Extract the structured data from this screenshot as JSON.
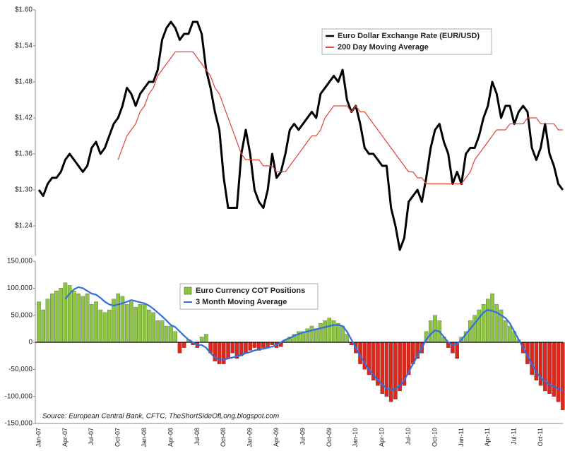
{
  "chart_data": [
    {
      "type": "line",
      "ylim": [
        1.19,
        1.6
      ],
      "yticks": [
        {
          "value": 1.24,
          "label": "$1.24"
        },
        {
          "value": 1.3,
          "label": "$1.30"
        },
        {
          "value": 1.36,
          "label": "$1.36"
        },
        {
          "value": 1.42,
          "label": "$1.42"
        },
        {
          "value": 1.48,
          "label": "$1.48"
        },
        {
          "value": 1.54,
          "label": "$1.54"
        },
        {
          "value": 1.6,
          "label": "$1.60"
        }
      ],
      "series": [
        {
          "name": "Euro Dollar Exchange Rate (EUR/USD)",
          "color": "#000000",
          "width": 3,
          "values": [
            1.3,
            1.29,
            1.31,
            1.32,
            1.32,
            1.33,
            1.35,
            1.36,
            1.35,
            1.34,
            1.33,
            1.34,
            1.37,
            1.38,
            1.36,
            1.37,
            1.39,
            1.41,
            1.42,
            1.44,
            1.47,
            1.46,
            1.44,
            1.46,
            1.47,
            1.48,
            1.48,
            1.5,
            1.55,
            1.57,
            1.58,
            1.57,
            1.55,
            1.56,
            1.56,
            1.58,
            1.58,
            1.56,
            1.5,
            1.47,
            1.43,
            1.4,
            1.32,
            1.27,
            1.27,
            1.27,
            1.36,
            1.4,
            1.36,
            1.3,
            1.28,
            1.27,
            1.3,
            1.36,
            1.32,
            1.33,
            1.36,
            1.4,
            1.41,
            1.4,
            1.41,
            1.42,
            1.43,
            1.42,
            1.46,
            1.47,
            1.48,
            1.49,
            1.48,
            1.5,
            1.45,
            1.43,
            1.44,
            1.41,
            1.37,
            1.36,
            1.36,
            1.35,
            1.34,
            1.34,
            1.27,
            1.24,
            1.2,
            1.22,
            1.28,
            1.29,
            1.3,
            1.28,
            1.32,
            1.37,
            1.4,
            1.41,
            1.38,
            1.36,
            1.31,
            1.33,
            1.31,
            1.36,
            1.37,
            1.37,
            1.39,
            1.42,
            1.44,
            1.48,
            1.46,
            1.42,
            1.44,
            1.44,
            1.41,
            1.43,
            1.44,
            1.43,
            1.37,
            1.35,
            1.37,
            1.41,
            1.36,
            1.34,
            1.31,
            1.3
          ]
        },
        {
          "name": "200 Day Moving Average",
          "color": "#e0453a",
          "width": 1.2,
          "values": [
            null,
            null,
            null,
            null,
            null,
            null,
            null,
            null,
            null,
            null,
            null,
            null,
            null,
            null,
            null,
            null,
            null,
            null,
            1.35,
            1.37,
            1.39,
            1.4,
            1.41,
            1.43,
            1.44,
            1.46,
            1.47,
            1.49,
            1.5,
            1.51,
            1.52,
            1.53,
            1.53,
            1.53,
            1.53,
            1.53,
            1.52,
            1.51,
            1.5,
            1.49,
            1.47,
            1.46,
            1.44,
            1.42,
            1.4,
            1.38,
            1.36,
            1.35,
            1.35,
            1.35,
            1.35,
            1.34,
            1.34,
            1.34,
            1.33,
            1.33,
            1.33,
            1.34,
            1.35,
            1.36,
            1.37,
            1.38,
            1.39,
            1.39,
            1.4,
            1.42,
            1.43,
            1.44,
            1.44,
            1.44,
            1.44,
            1.43,
            1.44,
            1.43,
            1.43,
            1.42,
            1.41,
            1.4,
            1.39,
            1.38,
            1.37,
            1.36,
            1.35,
            1.34,
            1.33,
            1.33,
            1.32,
            1.32,
            1.31,
            1.31,
            1.31,
            1.31,
            1.31,
            1.31,
            1.31,
            1.31,
            1.31,
            1.32,
            1.33,
            1.35,
            1.36,
            1.37,
            1.38,
            1.39,
            1.4,
            1.4,
            1.4,
            1.41,
            1.41,
            1.41,
            1.41,
            1.42,
            1.42,
            1.42,
            1.41,
            1.41,
            1.41,
            1.41,
            1.4,
            1.4
          ]
        }
      ]
    },
    {
      "type": "bar",
      "ylim": [
        -150000,
        150000
      ],
      "yticks": [
        {
          "value": -150000,
          "label": "-150,000"
        },
        {
          "value": -100000,
          "label": "-100,000"
        },
        {
          "value": -50000,
          "label": "-50,000"
        },
        0,
        {
          "value": 50000,
          "label": "50,000"
        },
        {
          "value": 100000,
          "label": "100,000"
        },
        {
          "value": 150000,
          "label": "150,000"
        }
      ],
      "categories": [
        "Jan-07",
        null,
        null,
        null,
        null,
        null,
        "Apr-07",
        null,
        null,
        null,
        null,
        null,
        "Jul-07",
        null,
        null,
        null,
        null,
        null,
        "Oct-07",
        null,
        null,
        null,
        null,
        null,
        "Jan-08",
        null,
        null,
        null,
        null,
        null,
        "Apr-08",
        null,
        null,
        null,
        null,
        null,
        "Jul-08",
        null,
        null,
        null,
        null,
        null,
        "Oct-08",
        null,
        null,
        null,
        null,
        null,
        "Jan-09",
        null,
        null,
        null,
        null,
        null,
        "Apr-09",
        null,
        null,
        null,
        null,
        null,
        "Jul-09",
        null,
        null,
        null,
        null,
        null,
        "Oct-09",
        null,
        null,
        null,
        null,
        null,
        "Jan-10",
        null,
        null,
        null,
        null,
        null,
        "Apr-10",
        null,
        null,
        null,
        null,
        null,
        "Jul-10",
        null,
        null,
        null,
        null,
        null,
        "Oct-10",
        null,
        null,
        null,
        null,
        null,
        "Jan-11",
        null,
        null,
        null,
        null,
        null,
        "Apr-11",
        null,
        null,
        null,
        null,
        null,
        "Jul-11",
        null,
        null,
        null,
        null,
        null,
        "Oct-11",
        null,
        null,
        null,
        null,
        null
      ],
      "annotation": "Source: European Central Bank, CFTC, TheShortSideOfLong.blogspot.com",
      "series": [
        {
          "name": "Euro Currency COT Positions",
          "kind": "bar",
          "color": "#8cc63f",
          "negative_color": "#e0261b",
          "values": [
            75000,
            60000,
            80000,
            90000,
            95000,
            100000,
            110000,
            105000,
            95000,
            90000,
            85000,
            90000,
            70000,
            75000,
            60000,
            55000,
            60000,
            80000,
            90000,
            85000,
            70000,
            75000,
            65000,
            70000,
            70000,
            60000,
            55000,
            40000,
            40000,
            30000,
            30000,
            20000,
            -20000,
            -10000,
            5000,
            -5000,
            -10000,
            10000,
            15000,
            -20000,
            -35000,
            -40000,
            -40000,
            -30000,
            -20000,
            -30000,
            -25000,
            -20000,
            -15000,
            -10000,
            -15000,
            -10000,
            -10000,
            -5000,
            -10000,
            -8000,
            5000,
            10000,
            15000,
            20000,
            20000,
            25000,
            30000,
            25000,
            35000,
            40000,
            45000,
            40000,
            35000,
            30000,
            15000,
            -5000,
            -20000,
            -40000,
            -50000,
            -60000,
            -70000,
            -80000,
            -95000,
            -100000,
            -110000,
            -105000,
            -90000,
            -80000,
            -60000,
            -40000,
            -30000,
            -20000,
            20000,
            40000,
            50000,
            40000,
            10000,
            -10000,
            -20000,
            -30000,
            10000,
            20000,
            40000,
            50000,
            60000,
            70000,
            80000,
            90000,
            70000,
            60000,
            40000,
            30000,
            20000,
            5000,
            -20000,
            -40000,
            -60000,
            -70000,
            -80000,
            -90000,
            -95000,
            -100000,
            -110000,
            -125000
          ]
        },
        {
          "name": "3 Month Moving Average",
          "kind": "line",
          "color": "#2f6fe0",
          "values": [
            null,
            null,
            null,
            null,
            null,
            null,
            80000,
            90000,
            98000,
            102000,
            100000,
            95000,
            90000,
            88000,
            82000,
            75000,
            70000,
            68000,
            70000,
            72000,
            75000,
            78000,
            76000,
            74000,
            72000,
            68000,
            62000,
            55000,
            48000,
            40000,
            32000,
            28000,
            20000,
            12000,
            5000,
            0,
            -5000,
            -5000,
            -10000,
            -20000,
            -28000,
            -32000,
            -32000,
            -30000,
            -28000,
            -26000,
            -24000,
            -20000,
            -18000,
            -15000,
            -13000,
            -12000,
            -10000,
            -8000,
            -5000,
            0,
            5000,
            8000,
            12000,
            15000,
            18000,
            20000,
            22000,
            24000,
            26000,
            28000,
            30000,
            32000,
            32000,
            30000,
            20000,
            5000,
            -10000,
            -25000,
            -38000,
            -50000,
            -60000,
            -70000,
            -78000,
            -85000,
            -88000,
            -86000,
            -80000,
            -70000,
            -55000,
            -40000,
            -25000,
            -10000,
            5000,
            15000,
            22000,
            20000,
            10000,
            0,
            -5000,
            -3000,
            5000,
            15000,
            25000,
            35000,
            45000,
            55000,
            60000,
            58000,
            55000,
            50000,
            45000,
            35000,
            20000,
            5000,
            -10000,
            -25000,
            -40000,
            -55000,
            -65000,
            -72000,
            -78000,
            -82000,
            -86000,
            -88000
          ]
        }
      ]
    }
  ]
}
